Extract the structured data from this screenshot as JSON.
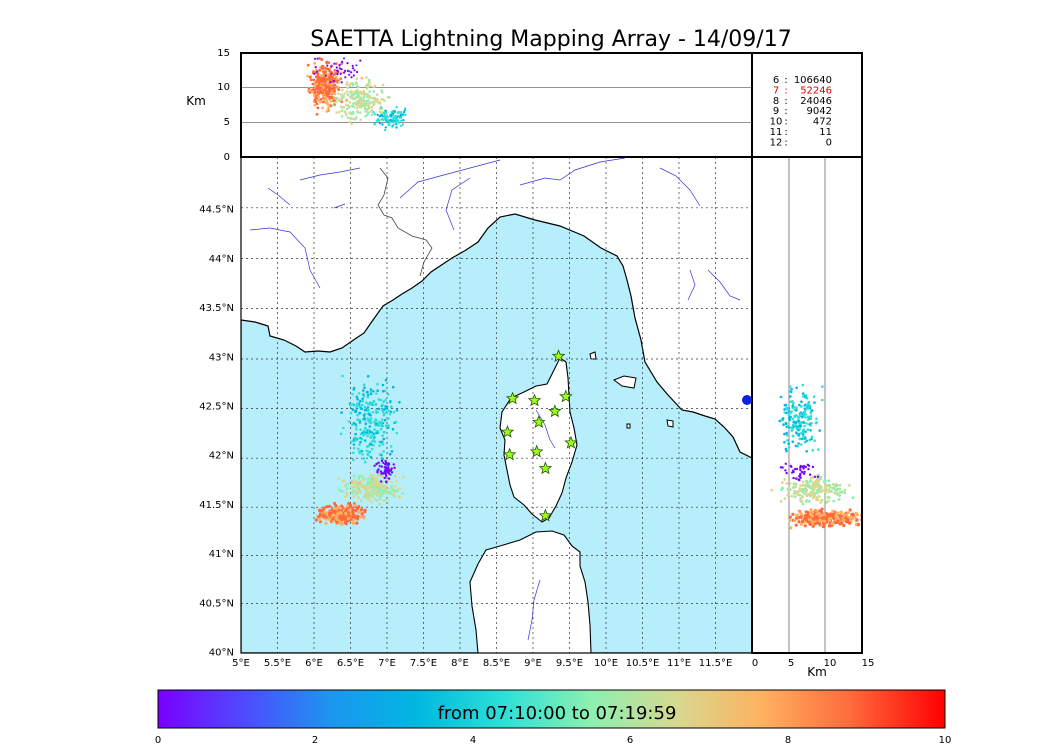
{
  "title": "SAETTA Lightning Mapping Array - 14/09/17",
  "altitude_panel": {
    "ylabel": "Km",
    "yticks": [
      "0",
      "5",
      "10",
      "15"
    ]
  },
  "side_panel": {
    "xlabel": "Km",
    "xticks": [
      "0",
      "5",
      "10",
      "15"
    ]
  },
  "map": {
    "lon_ticks": [
      "5°E",
      "5.5°E",
      "6°E",
      "6.5°E",
      "7°E",
      "7.5°E",
      "8°E",
      "8.5°E",
      "9°E",
      "9.5°E",
      "10°E",
      "10.5°E",
      "11°E",
      "11.5°E"
    ],
    "lat_ticks": [
      "40°N",
      "40.5°N",
      "41°N",
      "41.5°N",
      "42°N",
      "42.5°N",
      "43°N",
      "43.5°N",
      "44°N",
      "44.5°N"
    ],
    "sea_color": "#b6eefb",
    "land_color": "#ffffff",
    "river_color": "#3333dd"
  },
  "station_counts": [
    {
      "stations": "6",
      "sep": ":",
      "count": "106640",
      "highlight": false
    },
    {
      "stations": "7",
      "sep": ":",
      "count": "52246",
      "highlight": true
    },
    {
      "stations": "8",
      "sep": ":",
      "count": "24046",
      "highlight": false
    },
    {
      "stations": "9",
      "sep": ":",
      "count": "9042",
      "highlight": false
    },
    {
      "stations": "10",
      "sep": ":",
      "count": "472",
      "highlight": false
    },
    {
      "stations": "11",
      "sep": ":",
      "count": "11",
      "highlight": false
    },
    {
      "stations": "12",
      "sep": ":",
      "count": "0",
      "highlight": false
    }
  ],
  "colorbar": {
    "label": "from 07:10:00 to 07:19:59",
    "ticks": [
      "0",
      "2",
      "4",
      "6",
      "8",
      "10"
    ],
    "stops": [
      "#7a00ff",
      "#4e4bff",
      "#1c96f0",
      "#00b8e0",
      "#2de0d8",
      "#8cf0b0",
      "#d8d890",
      "#ffb060",
      "#ff6a3c",
      "#ff0000"
    ]
  },
  "stations": [
    {
      "lon": 9.35,
      "lat": 43.0
    },
    {
      "lon": 8.72,
      "lat": 42.57
    },
    {
      "lon": 9.02,
      "lat": 42.55
    },
    {
      "lon": 9.45,
      "lat": 42.59
    },
    {
      "lon": 9.3,
      "lat": 42.44
    },
    {
      "lon": 9.08,
      "lat": 42.33
    },
    {
      "lon": 8.65,
      "lat": 42.23
    },
    {
      "lon": 9.52,
      "lat": 42.12
    },
    {
      "lon": 9.05,
      "lat": 42.03
    },
    {
      "lon": 8.68,
      "lat": 42.0
    },
    {
      "lon": 9.17,
      "lat": 41.86
    },
    {
      "lon": 9.17,
      "lat": 41.38
    }
  ]
}
